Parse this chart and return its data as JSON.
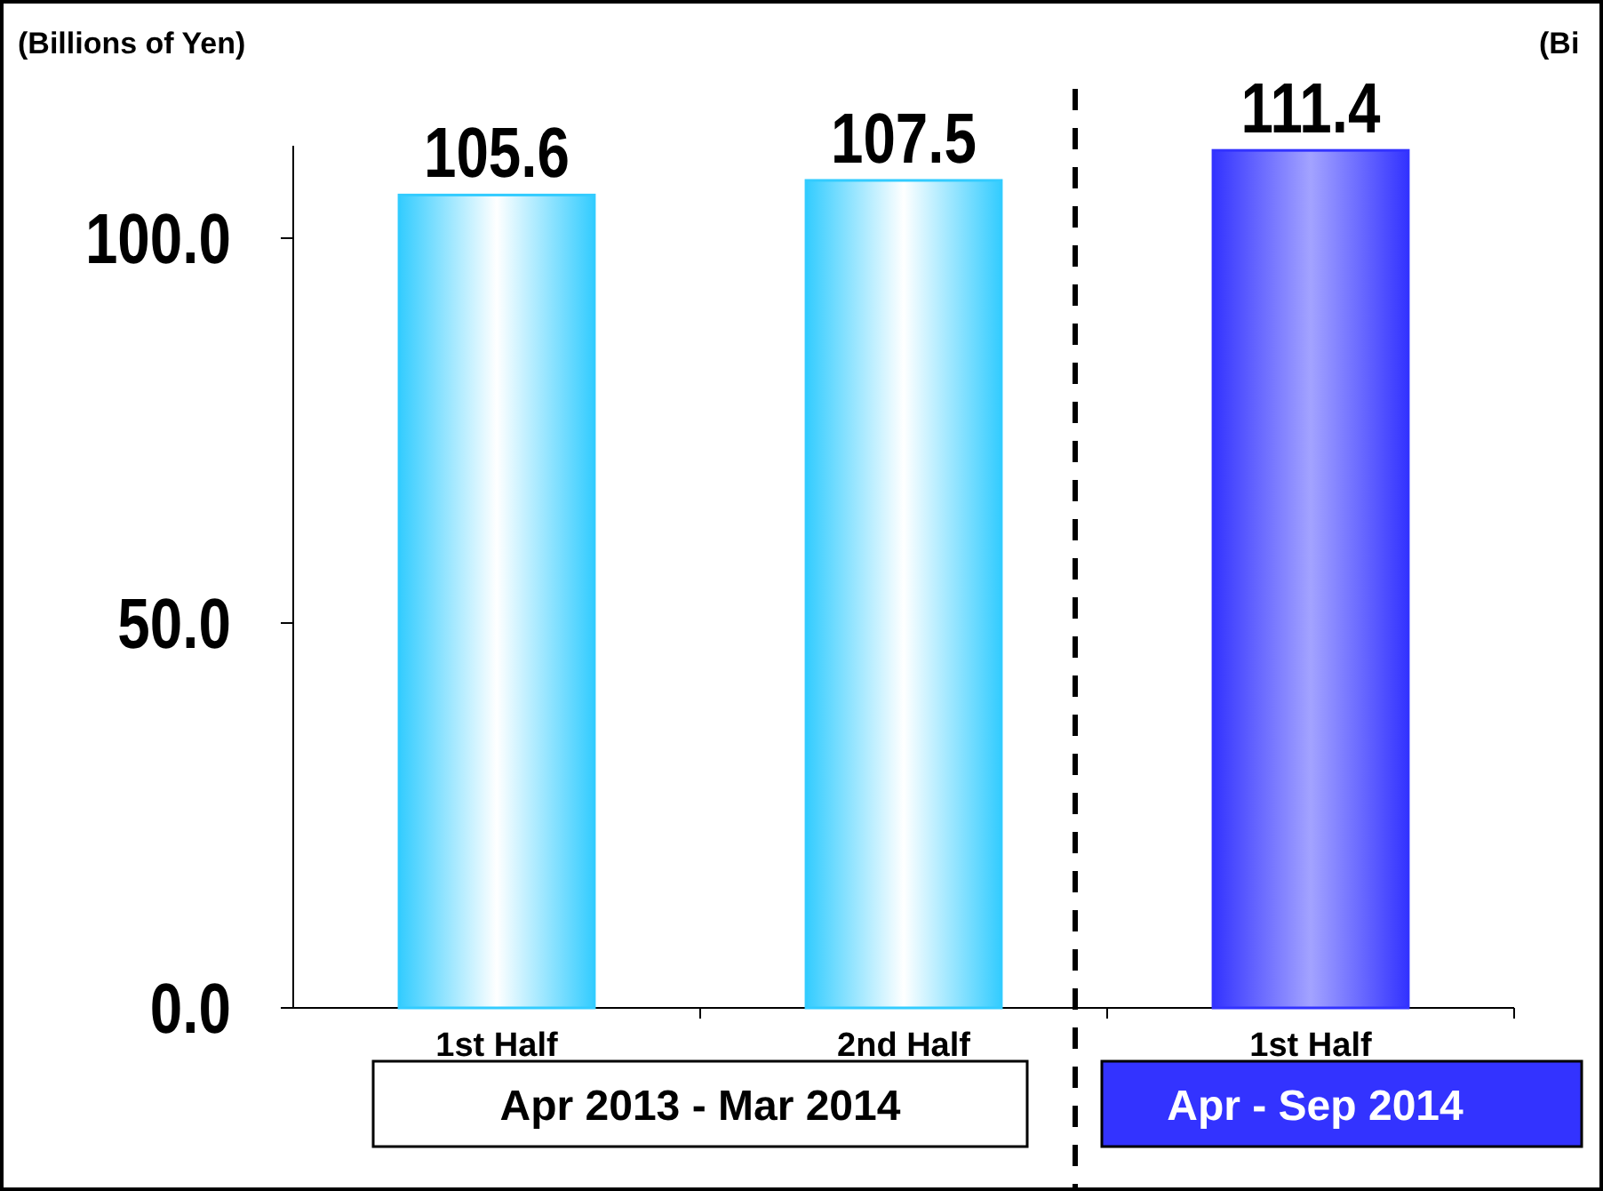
{
  "chart_data": {
    "type": "bar",
    "ylabel": "(Billions of Yen)",
    "categories": [
      "1st Half",
      "2nd Half",
      "1st Half"
    ],
    "values": [
      105.6,
      107.5,
      111.4
    ],
    "colors": [
      "#33ccff",
      "#33ccff",
      "#3333ff"
    ],
    "ylim": [
      0,
      112
    ],
    "yticks": [
      {
        "value": 0,
        "label": "0.0"
      },
      {
        "value": 50,
        "label": "50.0"
      },
      {
        "value": 100,
        "label": "100.0"
      }
    ],
    "data_labels": true,
    "grid": false,
    "annotations": [
      "Apr 2013 - Mar 2014",
      "Apr - Sep 2014",
      "(Bi"
    ]
  }
}
